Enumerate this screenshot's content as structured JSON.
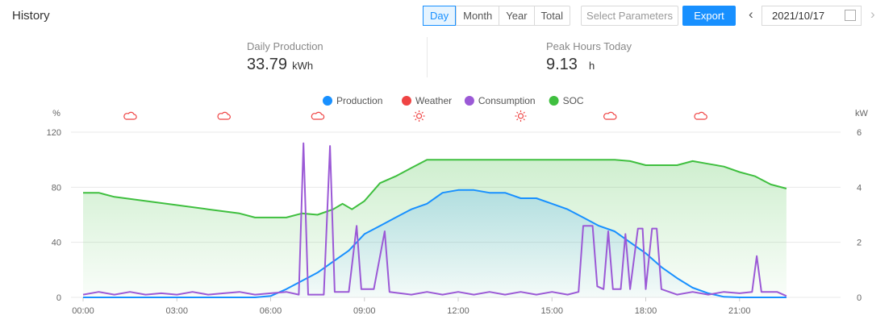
{
  "header": {
    "title": "History",
    "periods": [
      "Day",
      "Month",
      "Year",
      "Total"
    ],
    "active_period": "Day",
    "select_parameters": "Select Parameters",
    "export": "Export",
    "date": "2021/10/17"
  },
  "stats": [
    {
      "label": "Daily Production",
      "value": "33.79",
      "unit": "kWh"
    },
    {
      "label": "Peak Hours Today",
      "value": "9.13",
      "unit": "h"
    }
  ],
  "colors": {
    "accent": "#1890ff",
    "production": "#1890ff",
    "weather": "#ef4444",
    "consumption": "#9b59d6",
    "soc": "#3fbf3f"
  },
  "chart_data": {
    "type": "line",
    "legend": [
      "Production",
      "Weather",
      "Consumption",
      "SOC"
    ],
    "legend_position": "top",
    "left_axis": {
      "label": "%",
      "ticks": [
        0,
        40,
        80,
        120
      ],
      "range": [
        0,
        120
      ]
    },
    "right_axis": {
      "label": "kW",
      "ticks": [
        0,
        2,
        4,
        6
      ],
      "range": [
        0,
        6
      ]
    },
    "x_ticks": [
      "00:00",
      "03:00",
      "06:00",
      "09:00",
      "12:00",
      "15:00",
      "18:00",
      "21:00"
    ],
    "grid": true,
    "weather": [
      {
        "time": 1.5,
        "icon": "cloud"
      },
      {
        "time": 4.5,
        "icon": "cloud"
      },
      {
        "time": 7.5,
        "icon": "cloud"
      },
      {
        "time": 10.75,
        "icon": "sun"
      },
      {
        "time": 14,
        "icon": "sun"
      },
      {
        "time": 16.85,
        "icon": "cloud"
      },
      {
        "time": 19.75,
        "icon": "cloud"
      }
    ],
    "series": [
      {
        "name": "SOC",
        "axis": "left",
        "area": true,
        "points": [
          [
            0,
            76
          ],
          [
            0.5,
            76
          ],
          [
            1,
            73
          ],
          [
            2,
            70
          ],
          [
            3,
            67
          ],
          [
            4,
            64
          ],
          [
            5,
            61
          ],
          [
            5.5,
            58
          ],
          [
            6,
            58
          ],
          [
            6.5,
            58
          ],
          [
            7,
            61
          ],
          [
            7.5,
            60
          ],
          [
            8,
            64
          ],
          [
            8.3,
            68
          ],
          [
            8.6,
            64
          ],
          [
            9,
            70
          ],
          [
            9.5,
            83
          ],
          [
            10,
            88
          ],
          [
            10.5,
            94
          ],
          [
            11,
            100
          ],
          [
            12,
            100
          ],
          [
            13,
            100
          ],
          [
            14,
            100
          ],
          [
            15,
            100
          ],
          [
            16,
            100
          ],
          [
            17,
            100
          ],
          [
            17.5,
            99
          ],
          [
            18,
            96
          ],
          [
            19,
            96
          ],
          [
            19.5,
            99
          ],
          [
            20,
            97
          ],
          [
            20.5,
            95
          ],
          [
            21,
            91
          ],
          [
            21.5,
            88
          ],
          [
            22,
            82
          ],
          [
            22.5,
            79
          ]
        ]
      },
      {
        "name": "Production",
        "axis": "right",
        "area": true,
        "points": [
          [
            0,
            0
          ],
          [
            5.5,
            0
          ],
          [
            6,
            0.05
          ],
          [
            6.5,
            0.3
          ],
          [
            7,
            0.6
          ],
          [
            7.5,
            0.9
          ],
          [
            8,
            1.3
          ],
          [
            8.5,
            1.7
          ],
          [
            9,
            2.3
          ],
          [
            9.5,
            2.6
          ],
          [
            10,
            2.9
          ],
          [
            10.5,
            3.2
          ],
          [
            11,
            3.4
          ],
          [
            11.5,
            3.8
          ],
          [
            12,
            3.9
          ],
          [
            12.5,
            3.9
          ],
          [
            13,
            3.8
          ],
          [
            13.5,
            3.8
          ],
          [
            14,
            3.6
          ],
          [
            14.5,
            3.6
          ],
          [
            15,
            3.4
          ],
          [
            15.5,
            3.2
          ],
          [
            16,
            2.9
          ],
          [
            16.5,
            2.6
          ],
          [
            17,
            2.4
          ],
          [
            17.5,
            2.0
          ],
          [
            18,
            1.6
          ],
          [
            18.5,
            1.1
          ],
          [
            19,
            0.7
          ],
          [
            19.5,
            0.35
          ],
          [
            20,
            0.15
          ],
          [
            20.5,
            0.02
          ],
          [
            21,
            0
          ],
          [
            22.5,
            0
          ]
        ]
      },
      {
        "name": "Consumption",
        "axis": "right",
        "area": false,
        "points": [
          [
            0,
            0.1
          ],
          [
            0.5,
            0.2
          ],
          [
            1,
            0.1
          ],
          [
            1.5,
            0.2
          ],
          [
            2,
            0.1
          ],
          [
            2.5,
            0.15
          ],
          [
            3,
            0.1
          ],
          [
            3.5,
            0.2
          ],
          [
            4,
            0.1
          ],
          [
            4.5,
            0.15
          ],
          [
            5,
            0.2
          ],
          [
            5.5,
            0.1
          ],
          [
            6,
            0.15
          ],
          [
            6.5,
            0.2
          ],
          [
            6.9,
            0.1
          ],
          [
            7.05,
            5.6
          ],
          [
            7.2,
            0.1
          ],
          [
            7.7,
            0.1
          ],
          [
            7.9,
            5.5
          ],
          [
            8.05,
            0.2
          ],
          [
            8.5,
            0.2
          ],
          [
            8.75,
            2.6
          ],
          [
            8.9,
            0.3
          ],
          [
            9.3,
            0.3
          ],
          [
            9.65,
            2.4
          ],
          [
            9.8,
            0.2
          ],
          [
            10.5,
            0.1
          ],
          [
            11,
            0.2
          ],
          [
            11.5,
            0.1
          ],
          [
            12,
            0.2
          ],
          [
            12.5,
            0.1
          ],
          [
            13,
            0.2
          ],
          [
            13.5,
            0.1
          ],
          [
            14,
            0.2
          ],
          [
            14.5,
            0.1
          ],
          [
            15,
            0.2
          ],
          [
            15.5,
            0.1
          ],
          [
            15.85,
            0.2
          ],
          [
            16,
            2.6
          ],
          [
            16.3,
            2.6
          ],
          [
            16.45,
            0.4
          ],
          [
            16.65,
            0.3
          ],
          [
            16.8,
            2.4
          ],
          [
            16.95,
            0.3
          ],
          [
            17.2,
            0.3
          ],
          [
            17.35,
            2.3
          ],
          [
            17.5,
            0.3
          ],
          [
            17.75,
            2.5
          ],
          [
            17.9,
            2.5
          ],
          [
            18,
            0.3
          ],
          [
            18.2,
            2.5
          ],
          [
            18.35,
            2.5
          ],
          [
            18.5,
            0.3
          ],
          [
            19,
            0.1
          ],
          [
            19.5,
            0.2
          ],
          [
            20,
            0.1
          ],
          [
            20.5,
            0.2
          ],
          [
            21,
            0.15
          ],
          [
            21.4,
            0.2
          ],
          [
            21.55,
            1.5
          ],
          [
            21.7,
            0.2
          ],
          [
            22.2,
            0.2
          ],
          [
            22.5,
            0.05
          ]
        ]
      }
    ]
  }
}
